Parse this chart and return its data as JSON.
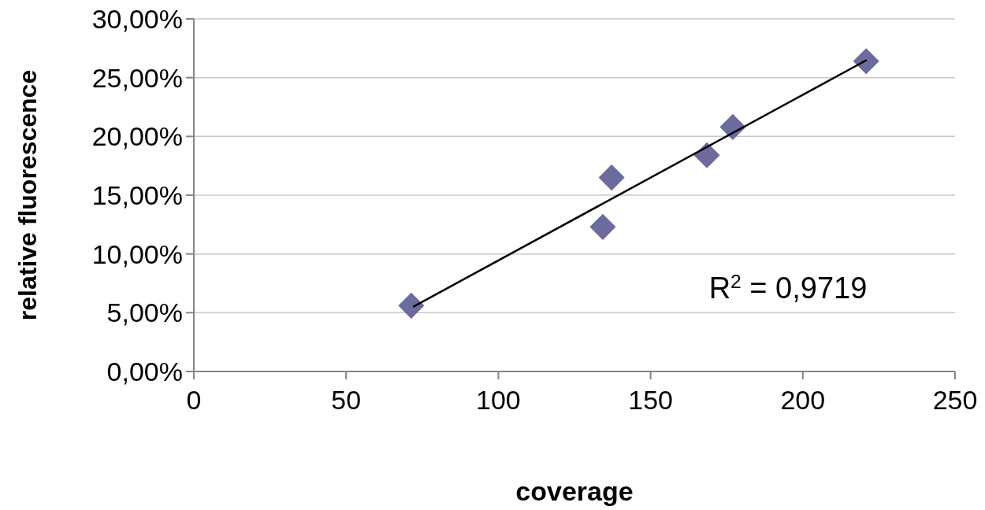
{
  "chart_data": {
    "type": "scatter",
    "xlabel": "coverage",
    "ylabel": "relative fluorescence",
    "xlim": [
      0,
      250
    ],
    "xticks": [
      0,
      50,
      100,
      150,
      200,
      250
    ],
    "ylim": [
      0,
      30
    ],
    "yticks": [
      {
        "value": 0,
        "label": "0,00%"
      },
      {
        "value": 5,
        "label": "5,00%"
      },
      {
        "value": 10,
        "label": "10,00%"
      },
      {
        "value": 15,
        "label": "15,00%"
      },
      {
        "value": 20,
        "label": "20,00%"
      },
      {
        "value": 25,
        "label": "25,00%"
      },
      {
        "value": 30,
        "label": "30,00%"
      }
    ],
    "grid": "y",
    "series": [
      {
        "marker": "diamond",
        "color": "#6b6b9e",
        "x": [
          71.4,
          134.3,
          137.2,
          168.5,
          177,
          220.8
        ],
        "values": [
          5.6,
          12.3,
          16.5,
          18.4,
          20.8,
          26.4
        ]
      },
      {
        "type": "line",
        "marker": "none",
        "color": "#000000",
        "x": [
          72,
          221
        ],
        "values": [
          5.5,
          26.5
        ]
      }
    ],
    "annotations": [
      "R$^{2}$ = 0,9719"
    ]
  }
}
